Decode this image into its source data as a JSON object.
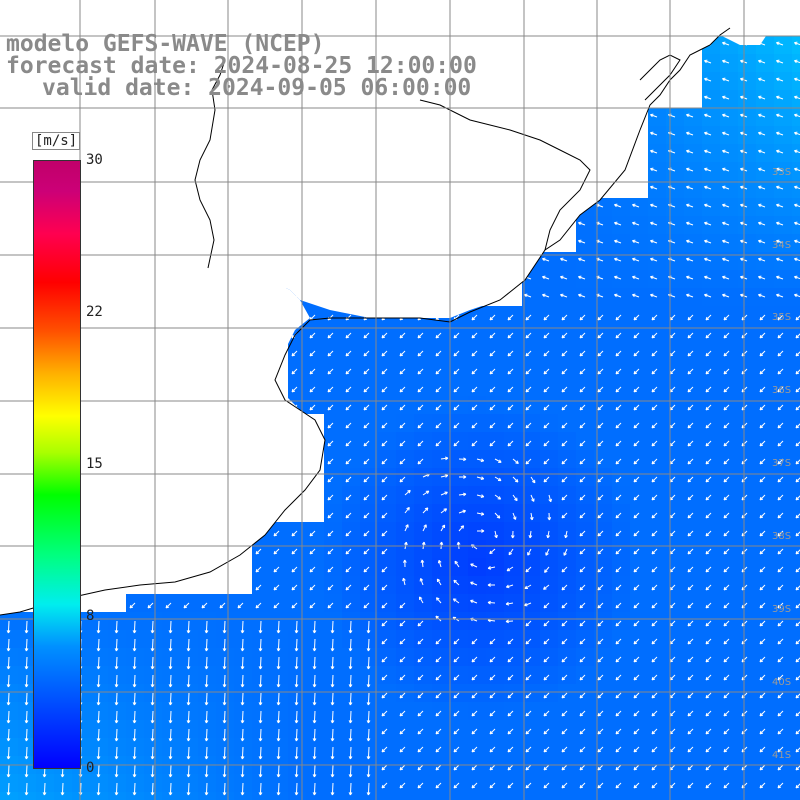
{
  "title": {
    "line1": "modelo GEFS-WAVE (NCEP)",
    "line2": "forecast date: 2024-08-25 12:00:00",
    "line3": "valid date: 2024-09-05 06:00:00"
  },
  "colorbar": {
    "unit": "[m/s]",
    "ticks": [
      "30",
      "22",
      "15",
      "8",
      "0"
    ],
    "colors": [
      "#0000ff",
      "#0090ff",
      "#00eeee",
      "#00ff00",
      "#ffff00",
      "#ff0000",
      "#c0006a"
    ]
  },
  "grid_labels": [
    "33S",
    "34S",
    "35S",
    "36S",
    "37S",
    "38S",
    "39S",
    "40S",
    "41S"
  ],
  "colors": {
    "land": "#ffffff",
    "coast": "#000000",
    "grid": "#888888",
    "arrows": "#ffffff"
  }
}
